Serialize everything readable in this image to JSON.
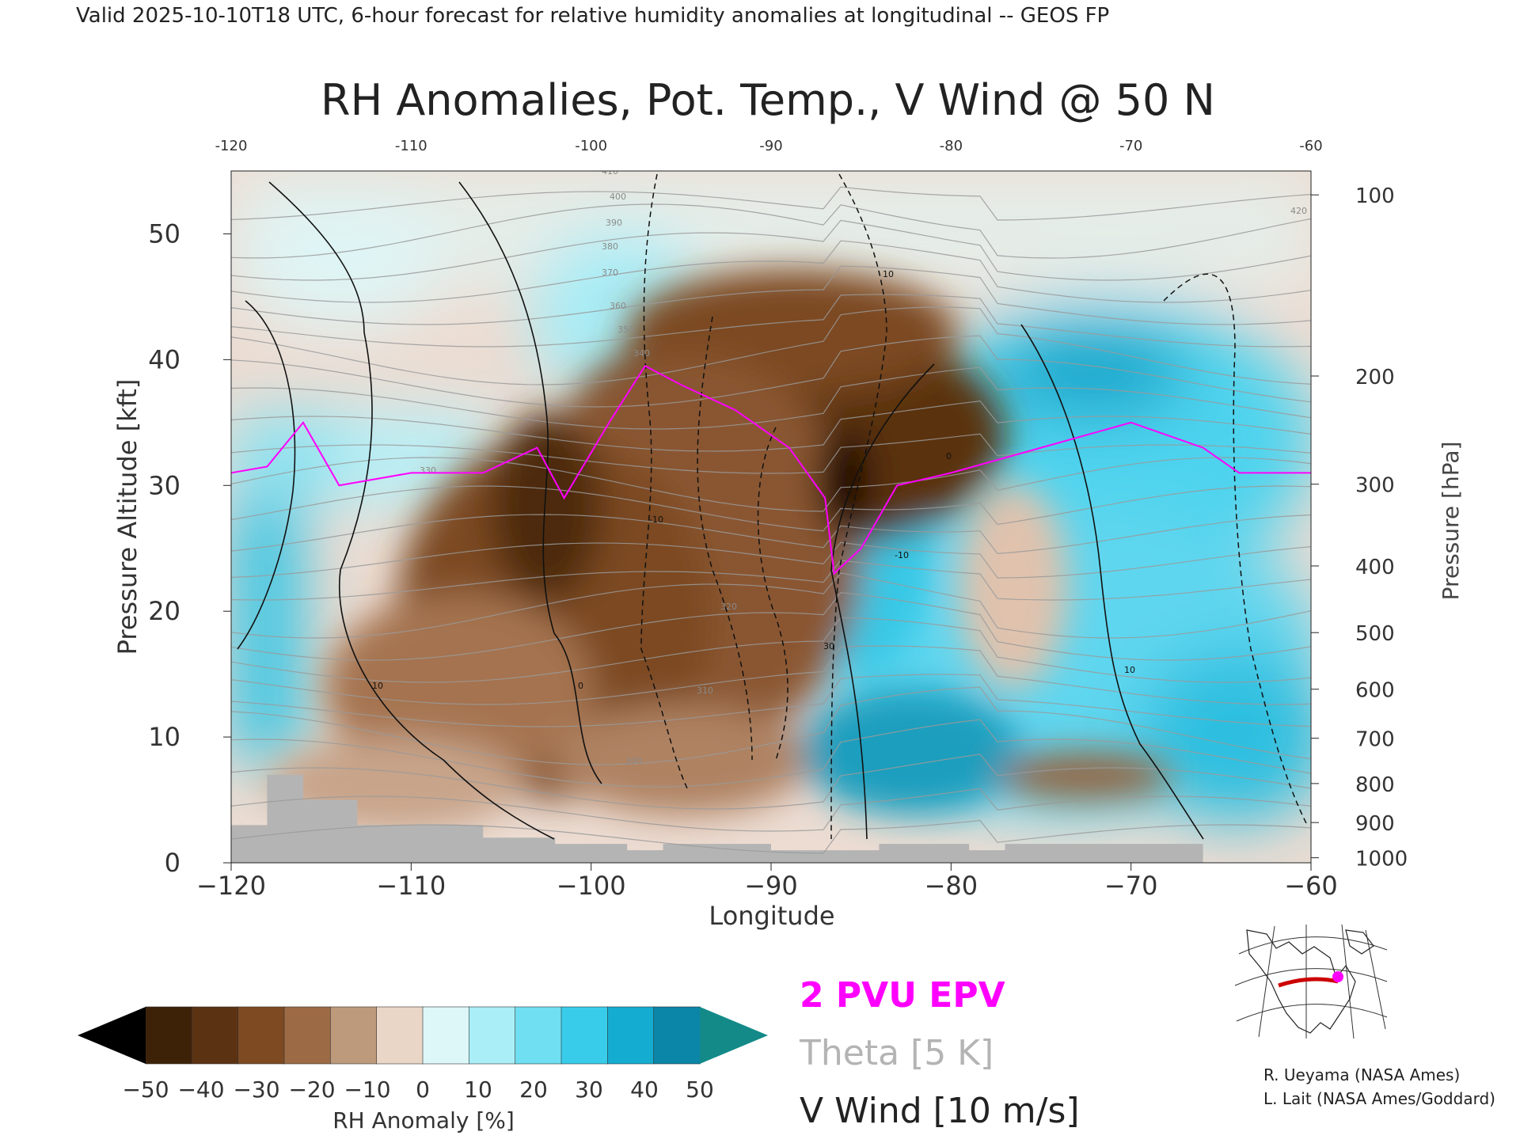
{
  "header_line": "Valid 2025-10-10T18 UTC, 6-hour forecast for relative humidity anomalies at longitudinal -- GEOS FP",
  "chart_data": {
    "type": "heatmap",
    "title": "RH Anomalies, Pot. Temp., V Wind @ 50 N",
    "xlabel": "Longitude",
    "ylabel_left": "Pressure Altitude [kft]",
    "ylabel_right": "Pressure [hPa]",
    "xlim": [
      -120,
      -60
    ],
    "ylim": [
      0,
      55
    ],
    "x_ticks_bottom": [
      "−120",
      "−110",
      "−100",
      "−90",
      "−80",
      "−70",
      "−60"
    ],
    "x_ticks_top": [
      "-120",
      "-110",
      "-100",
      "-90",
      "-80",
      "-70",
      "-60"
    ],
    "x_tick_values": [
      -120,
      -110,
      -100,
      -90,
      -80,
      -70,
      -60
    ],
    "y_ticks_left": [
      "0",
      "10",
      "20",
      "30",
      "40",
      "50"
    ],
    "y_tick_values_left": [
      0,
      10,
      20,
      30,
      40,
      50
    ],
    "pressure_ticks": [
      {
        "label": "100",
        "kft": 53.1
      },
      {
        "label": "200",
        "kft": 38.7
      },
      {
        "label": "300",
        "kft": 30.1
      },
      {
        "label": "400",
        "kft": 23.6
      },
      {
        "label": "500",
        "kft": 18.3
      },
      {
        "label": "600",
        "kft": 13.8
      },
      {
        "label": "700",
        "kft": 9.9
      },
      {
        "label": "800",
        "kft": 6.3
      },
      {
        "label": "900",
        "kft": 3.2
      },
      {
        "label": "1000",
        "kft": 0.4
      }
    ],
    "anomaly_regions": [
      {
        "name": "dry",
        "x_range": [
          -110,
          -84
        ],
        "kft_range": [
          2,
          45
        ],
        "peak": -50
      },
      {
        "name": "moist",
        "x_range": [
          -86,
          -61
        ],
        "kft_range": [
          1,
          40
        ],
        "peak": 50
      },
      {
        "name": "moist",
        "x_range": [
          -120,
          -112
        ],
        "kft_range": [
          6,
          32
        ],
        "peak": 40
      }
    ],
    "epv_2pvu_line": [
      [
        -120,
        31
      ],
      [
        -118,
        31.5
      ],
      [
        -116,
        35
      ],
      [
        -114,
        30
      ],
      [
        -110,
        31
      ],
      [
        -106,
        31
      ],
      [
        -103,
        33
      ],
      [
        -101.5,
        29
      ],
      [
        -99,
        35
      ],
      [
        -97,
        39.5
      ],
      [
        -95,
        38
      ],
      [
        -92,
        36
      ],
      [
        -89,
        33
      ],
      [
        -87,
        29
      ],
      [
        -86.5,
        23
      ],
      [
        -85,
        25
      ],
      [
        -83,
        30
      ],
      [
        -80,
        31
      ],
      [
        -75,
        33
      ],
      [
        -70,
        35
      ],
      [
        -66,
        33
      ],
      [
        -64,
        31
      ],
      [
        -60,
        31
      ]
    ],
    "terrain_kft": [
      [
        -120,
        3
      ],
      [
        -118,
        3
      ],
      [
        -118,
        7
      ],
      [
        -116,
        7
      ],
      [
        -116,
        5
      ],
      [
        -113,
        5
      ],
      [
        -113,
        3
      ],
      [
        -106,
        3
      ],
      [
        -106,
        2
      ],
      [
        -102,
        2
      ],
      [
        -102,
        1.5
      ],
      [
        -98,
        1.5
      ],
      [
        -98,
        1
      ],
      [
        -96,
        1
      ],
      [
        -96,
        1.5
      ],
      [
        -90,
        1.5
      ],
      [
        -90,
        1
      ],
      [
        -84,
        1
      ],
      [
        -84,
        1.5
      ],
      [
        -79,
        1.5
      ],
      [
        -79,
        1
      ],
      [
        -77,
        1
      ],
      [
        -77,
        1.5
      ],
      [
        -66,
        1.5
      ],
      [
        -66,
        0
      ],
      [
        -120,
        0
      ]
    ],
    "theta_levels": [
      "300",
      "310",
      "320",
      "330",
      "340",
      "350",
      "360",
      "370",
      "380",
      "390",
      "400",
      "410",
      "420"
    ],
    "vwind_contour_labels": [
      "10",
      "0",
      "-10",
      "30",
      "10",
      "0",
      "-10",
      "10"
    ],
    "colorbar": {
      "label": "RH Anomaly [%]",
      "tick_labels": [
        "−50",
        "−40",
        "−30",
        "−20",
        "−10",
        "0",
        "10",
        "20",
        "30",
        "40",
        "50"
      ],
      "colors": [
        "#3e2208",
        "#5c3312",
        "#7d4a22",
        "#9c6a44",
        "#bd9a7c",
        "#ead6c6",
        "#ddf7f9",
        "#aaeef7",
        "#6fdff1",
        "#39ccea",
        "#14acd0",
        "#0b86a8"
      ],
      "under_color": "#000000",
      "over_color": "#138a88"
    }
  },
  "legend": {
    "epv": "2 PVU EPV",
    "theta": "Theta [5 K]",
    "vwind": "V Wind [10 m/s]",
    "epv_color": "#ff00ff",
    "theta_color": "#b4b4b4"
  },
  "credits": [
    "R. Ueyama (NASA Ames)",
    "L. Lait (NASA Ames/Goddard)"
  ],
  "inset_map": {
    "highlight_color": "#cc0000",
    "marker_color": "#ff00ff"
  }
}
